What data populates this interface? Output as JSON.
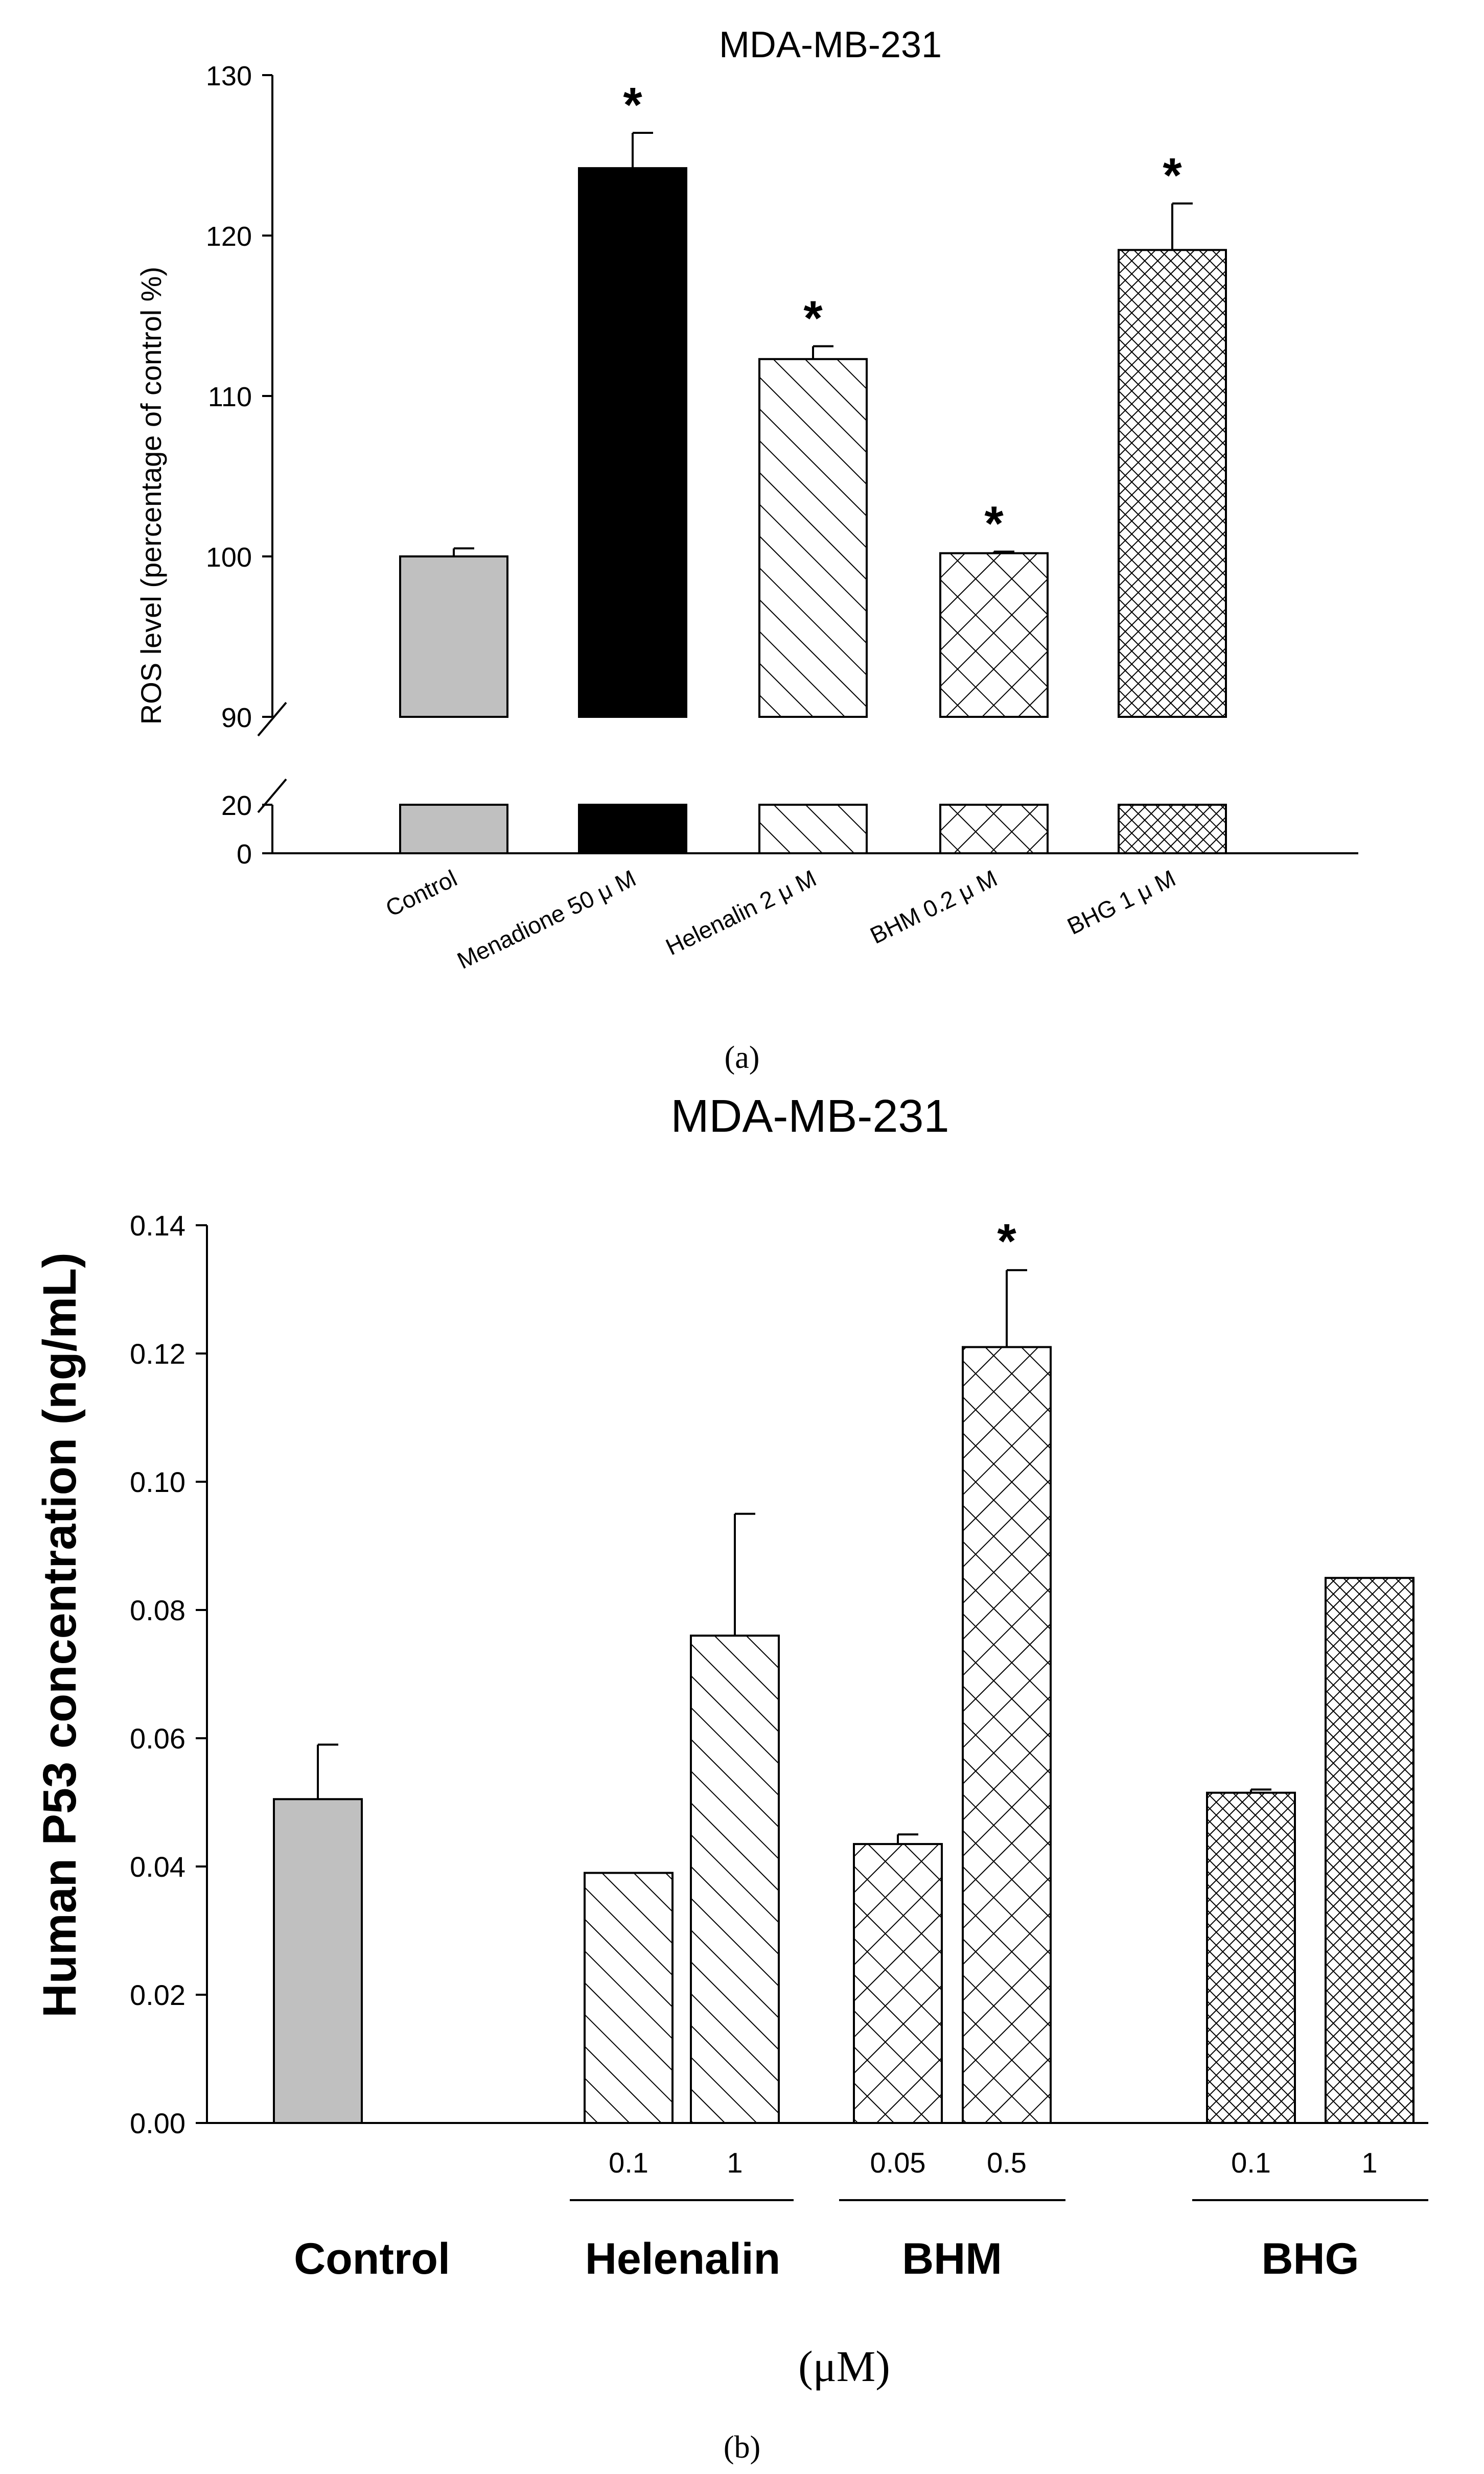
{
  "chart_data": [
    {
      "type": "bar",
      "panel": "(a)",
      "title": "MDA-MB-231",
      "ylabel": "ROS level (percentage of control %)",
      "xlabel": "",
      "ylim_upper": [
        90,
        130
      ],
      "ylim_lower": [
        0,
        20
      ],
      "yticks_upper": [
        "90",
        "100",
        "110",
        "120",
        "130"
      ],
      "yticks_lower": [
        "0",
        "20"
      ],
      "categories": [
        "Control",
        "Menadione 50 μ M",
        "Helenalin 2 μ M",
        "BHM 0.2 μ M",
        "BHG 1 μ M"
      ],
      "values": [
        100.0,
        124.2,
        112.3,
        100.2,
        119.1
      ],
      "errors": [
        0.5,
        2.2,
        0.8,
        0.1,
        2.9
      ],
      "significant": [
        false,
        true,
        true,
        true,
        true
      ],
      "significance_mark": "*",
      "patterns": [
        "gray",
        "black",
        "diag",
        "cross",
        "dense"
      ],
      "axis_break": true
    },
    {
      "type": "bar",
      "panel": "(b)",
      "title": "MDA-MB-231",
      "ylabel": "Human P53 concentration (ng/mL)",
      "xlabel": "(μM)",
      "ylim": [
        0,
        0.14
      ],
      "yticks": [
        "0.00",
        "0.02",
        "0.04",
        "0.06",
        "0.08",
        "0.10",
        "0.12",
        "0.14"
      ],
      "groups": [
        {
          "name": "Control",
          "bars": [
            {
              "label": "",
              "value": 0.0505,
              "error": 0.0085,
              "significant": false,
              "pattern": "gray"
            }
          ]
        },
        {
          "name": "Helenalin",
          "bars": [
            {
              "label": "0.1",
              "value": 0.039,
              "error": 0,
              "significant": false,
              "pattern": "diag"
            },
            {
              "label": "1",
              "value": 0.076,
              "error": 0.019,
              "significant": false,
              "pattern": "diag"
            }
          ]
        },
        {
          "name": "BHM",
          "bars": [
            {
              "label": "0.05",
              "value": 0.0435,
              "error": 0.0015,
              "significant": false,
              "pattern": "cross"
            },
            {
              "label": "0.5",
              "value": 0.121,
              "error": 0.012,
              "significant": true,
              "pattern": "cross"
            }
          ]
        },
        {
          "name": "BHG",
          "bars": [
            {
              "label": "0.1",
              "value": 0.0515,
              "error": 0.0005,
              "significant": false,
              "pattern": "dense"
            },
            {
              "label": "1",
              "value": 0.085,
              "error": 0,
              "significant": false,
              "pattern": "dense"
            }
          ]
        }
      ],
      "significance_mark": "*"
    }
  ],
  "colors": {
    "gray": "#c0c0c0",
    "black": "#000000",
    "line": "#000000"
  }
}
